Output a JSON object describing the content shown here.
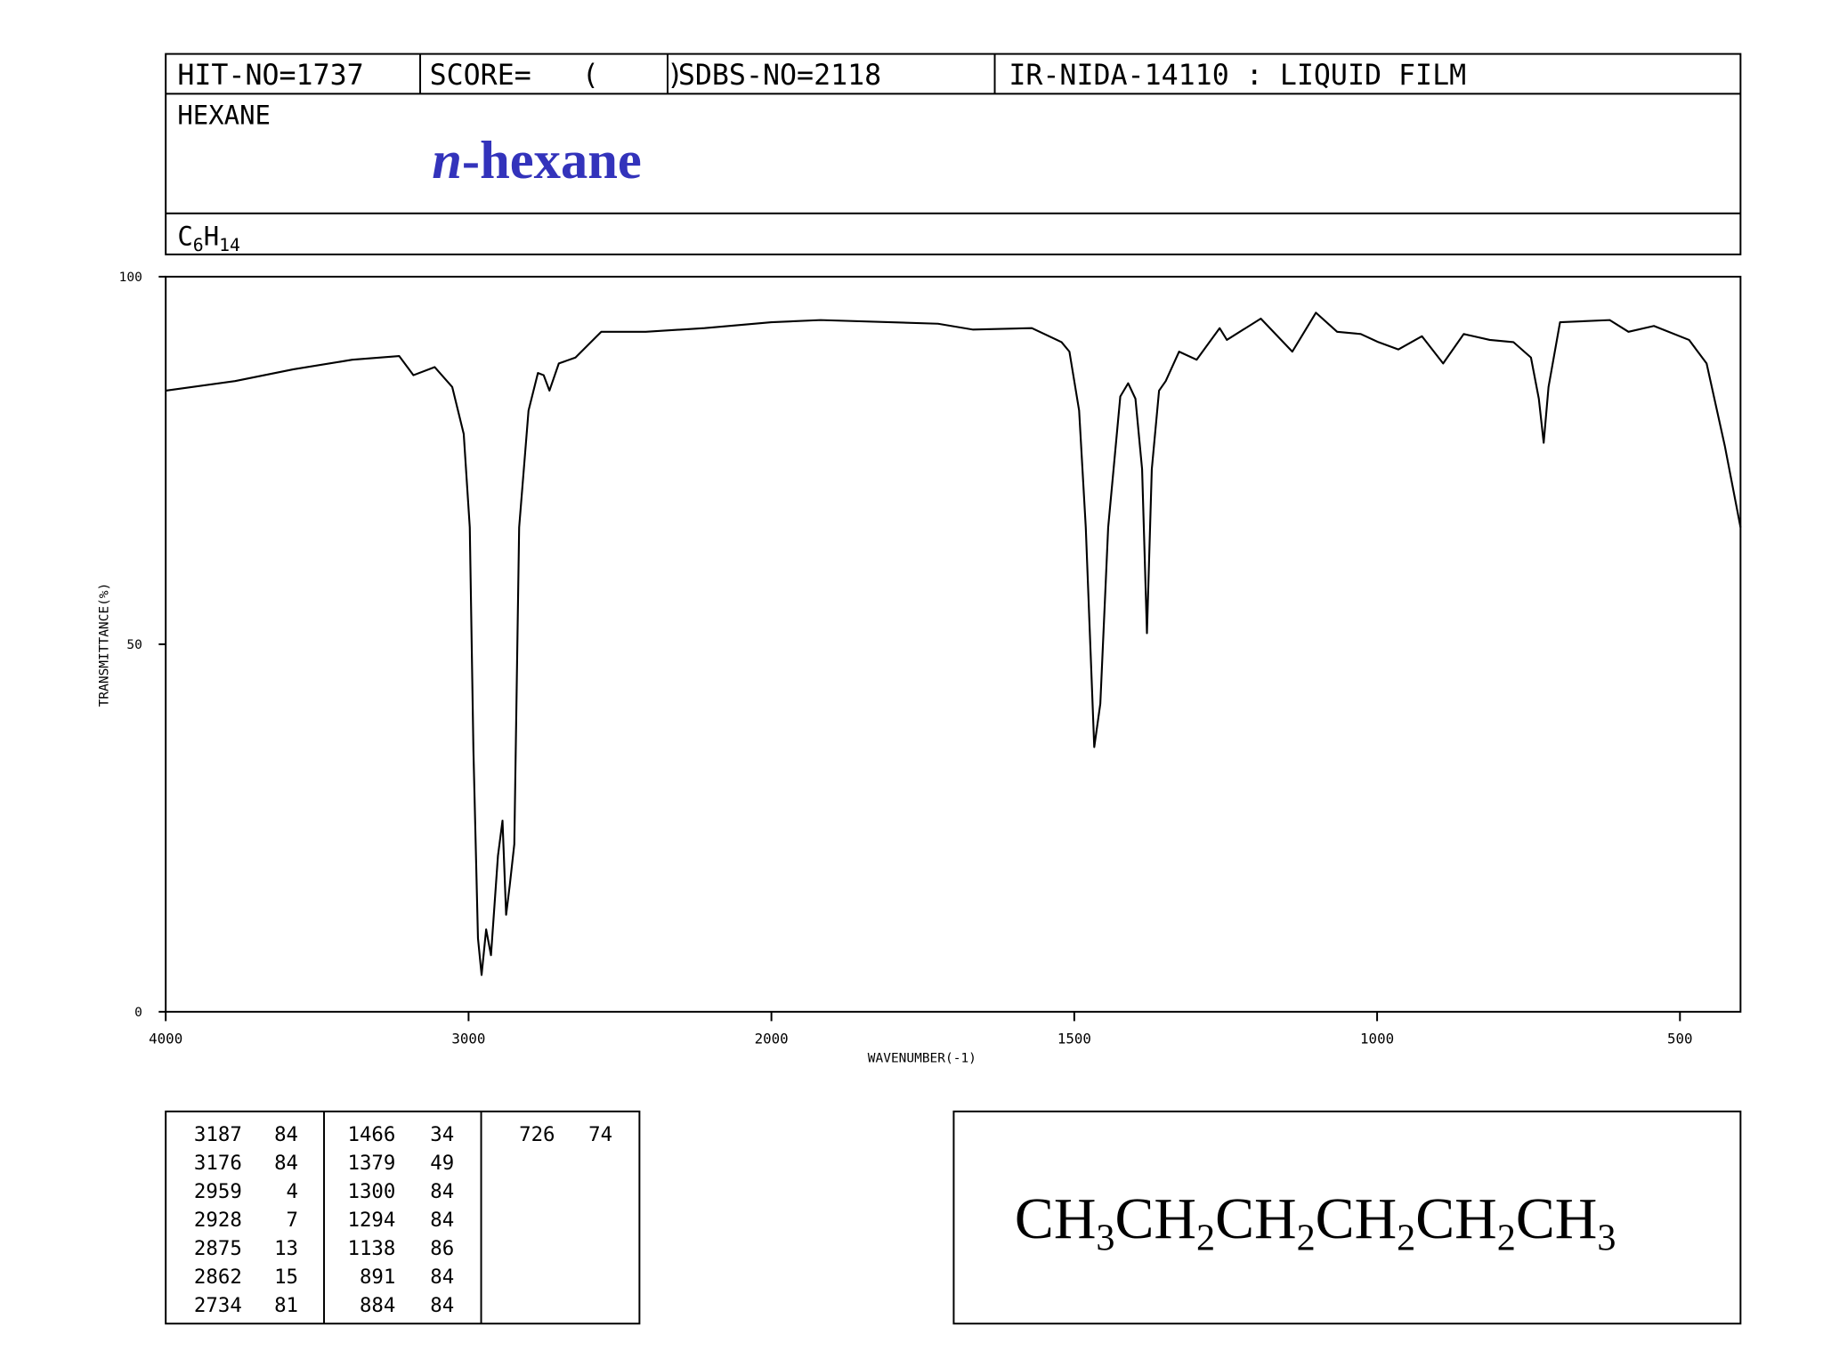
{
  "header": {
    "hit_no": "HIT-NO=1737",
    "score": "SCORE=   (    )",
    "sdbs_no": "SDBS-NO=2118",
    "method": "IR-NIDA-14110 : LIQUID FILM",
    "name": "HEXANE",
    "common_name": [
      "n",
      "-hexane"
    ],
    "formula": [
      "C",
      "6",
      "H",
      "14"
    ]
  },
  "chart_data": {
    "type": "line",
    "color": "#000000",
    "ylabel": "TRANSMITTANCE(%)",
    "xlabel": "WAVENUMBER(-1)",
    "xlim": [
      4000,
      400
    ],
    "xscale_break": 2000,
    "ylim": [
      0,
      100
    ],
    "xticks": [
      4000,
      3000,
      2000,
      1500,
      1000,
      500
    ],
    "yticks": [
      0,
      50,
      100
    ],
    "x": [
      4000,
      3771,
      3578,
      3384,
      3229,
      3182,
      3112,
      3054,
      3016,
      2996,
      2984,
      2969,
      2957,
      2942,
      2926,
      2903,
      2888,
      2876,
      2864,
      2849,
      2833,
      2802,
      2771,
      2752,
      2733,
      2702,
      2647,
      2562,
      2415,
      2221,
      2000,
      1919,
      1725,
      1667,
      1570,
      1521,
      1508,
      1492,
      1481,
      1467,
      1457,
      1444,
      1424,
      1411,
      1399,
      1388,
      1380,
      1372,
      1360,
      1349,
      1327,
      1298,
      1260,
      1248,
      1192,
      1140,
      1101,
      1066,
      1027,
      998,
      965,
      926,
      891,
      857,
      814,
      775,
      746,
      733,
      725,
      717,
      698,
      616,
      585,
      543,
      485,
      456,
      426,
      400
    ],
    "values": [
      84.5,
      85.8,
      87.4,
      88.7,
      89.2,
      86.6,
      87.7,
      85,
      78.6,
      65.9,
      35.6,
      10,
      5,
      11.2,
      7.7,
      21.2,
      26,
      13.2,
      17.2,
      22.8,
      65.9,
      81.8,
      86.9,
      86.6,
      84.5,
      88.2,
      89,
      92.5,
      92.5,
      93,
      93.8,
      94.1,
      93.6,
      92.8,
      93,
      91.1,
      89.8,
      81.8,
      65.9,
      36,
      41.9,
      65.9,
      83.7,
      85.5,
      83.4,
      73.8,
      51.5,
      73.8,
      84.5,
      85.8,
      89.8,
      88.7,
      93,
      91.4,
      94.3,
      89.8,
      95.1,
      92.5,
      92.2,
      91.1,
      90.1,
      91.9,
      88.2,
      92.2,
      91.4,
      91.1,
      89,
      83.4,
      77.4,
      85,
      93.8,
      94.1,
      92.5,
      93.3,
      91.4,
      88.2,
      77,
      65.9
    ]
  },
  "peaks": {
    "columns": [
      [
        [
          3187,
          84
        ],
        [
          3176,
          84
        ],
        [
          2959,
          4
        ],
        [
          2928,
          7
        ],
        [
          2875,
          13
        ],
        [
          2862,
          15
        ],
        [
          2734,
          81
        ]
      ],
      [
        [
          1466,
          34
        ],
        [
          1379,
          49
        ],
        [
          1300,
          84
        ],
        [
          1294,
          84
        ],
        [
          1138,
          86
        ],
        [
          891,
          84
        ],
        [
          884,
          84
        ]
      ],
      [
        [
          726,
          74
        ]
      ]
    ]
  },
  "structure": [
    "CH",
    "3",
    "CH",
    "2",
    "CH",
    "2",
    "CH",
    "2",
    "CH",
    "2",
    "CH",
    "3"
  ]
}
